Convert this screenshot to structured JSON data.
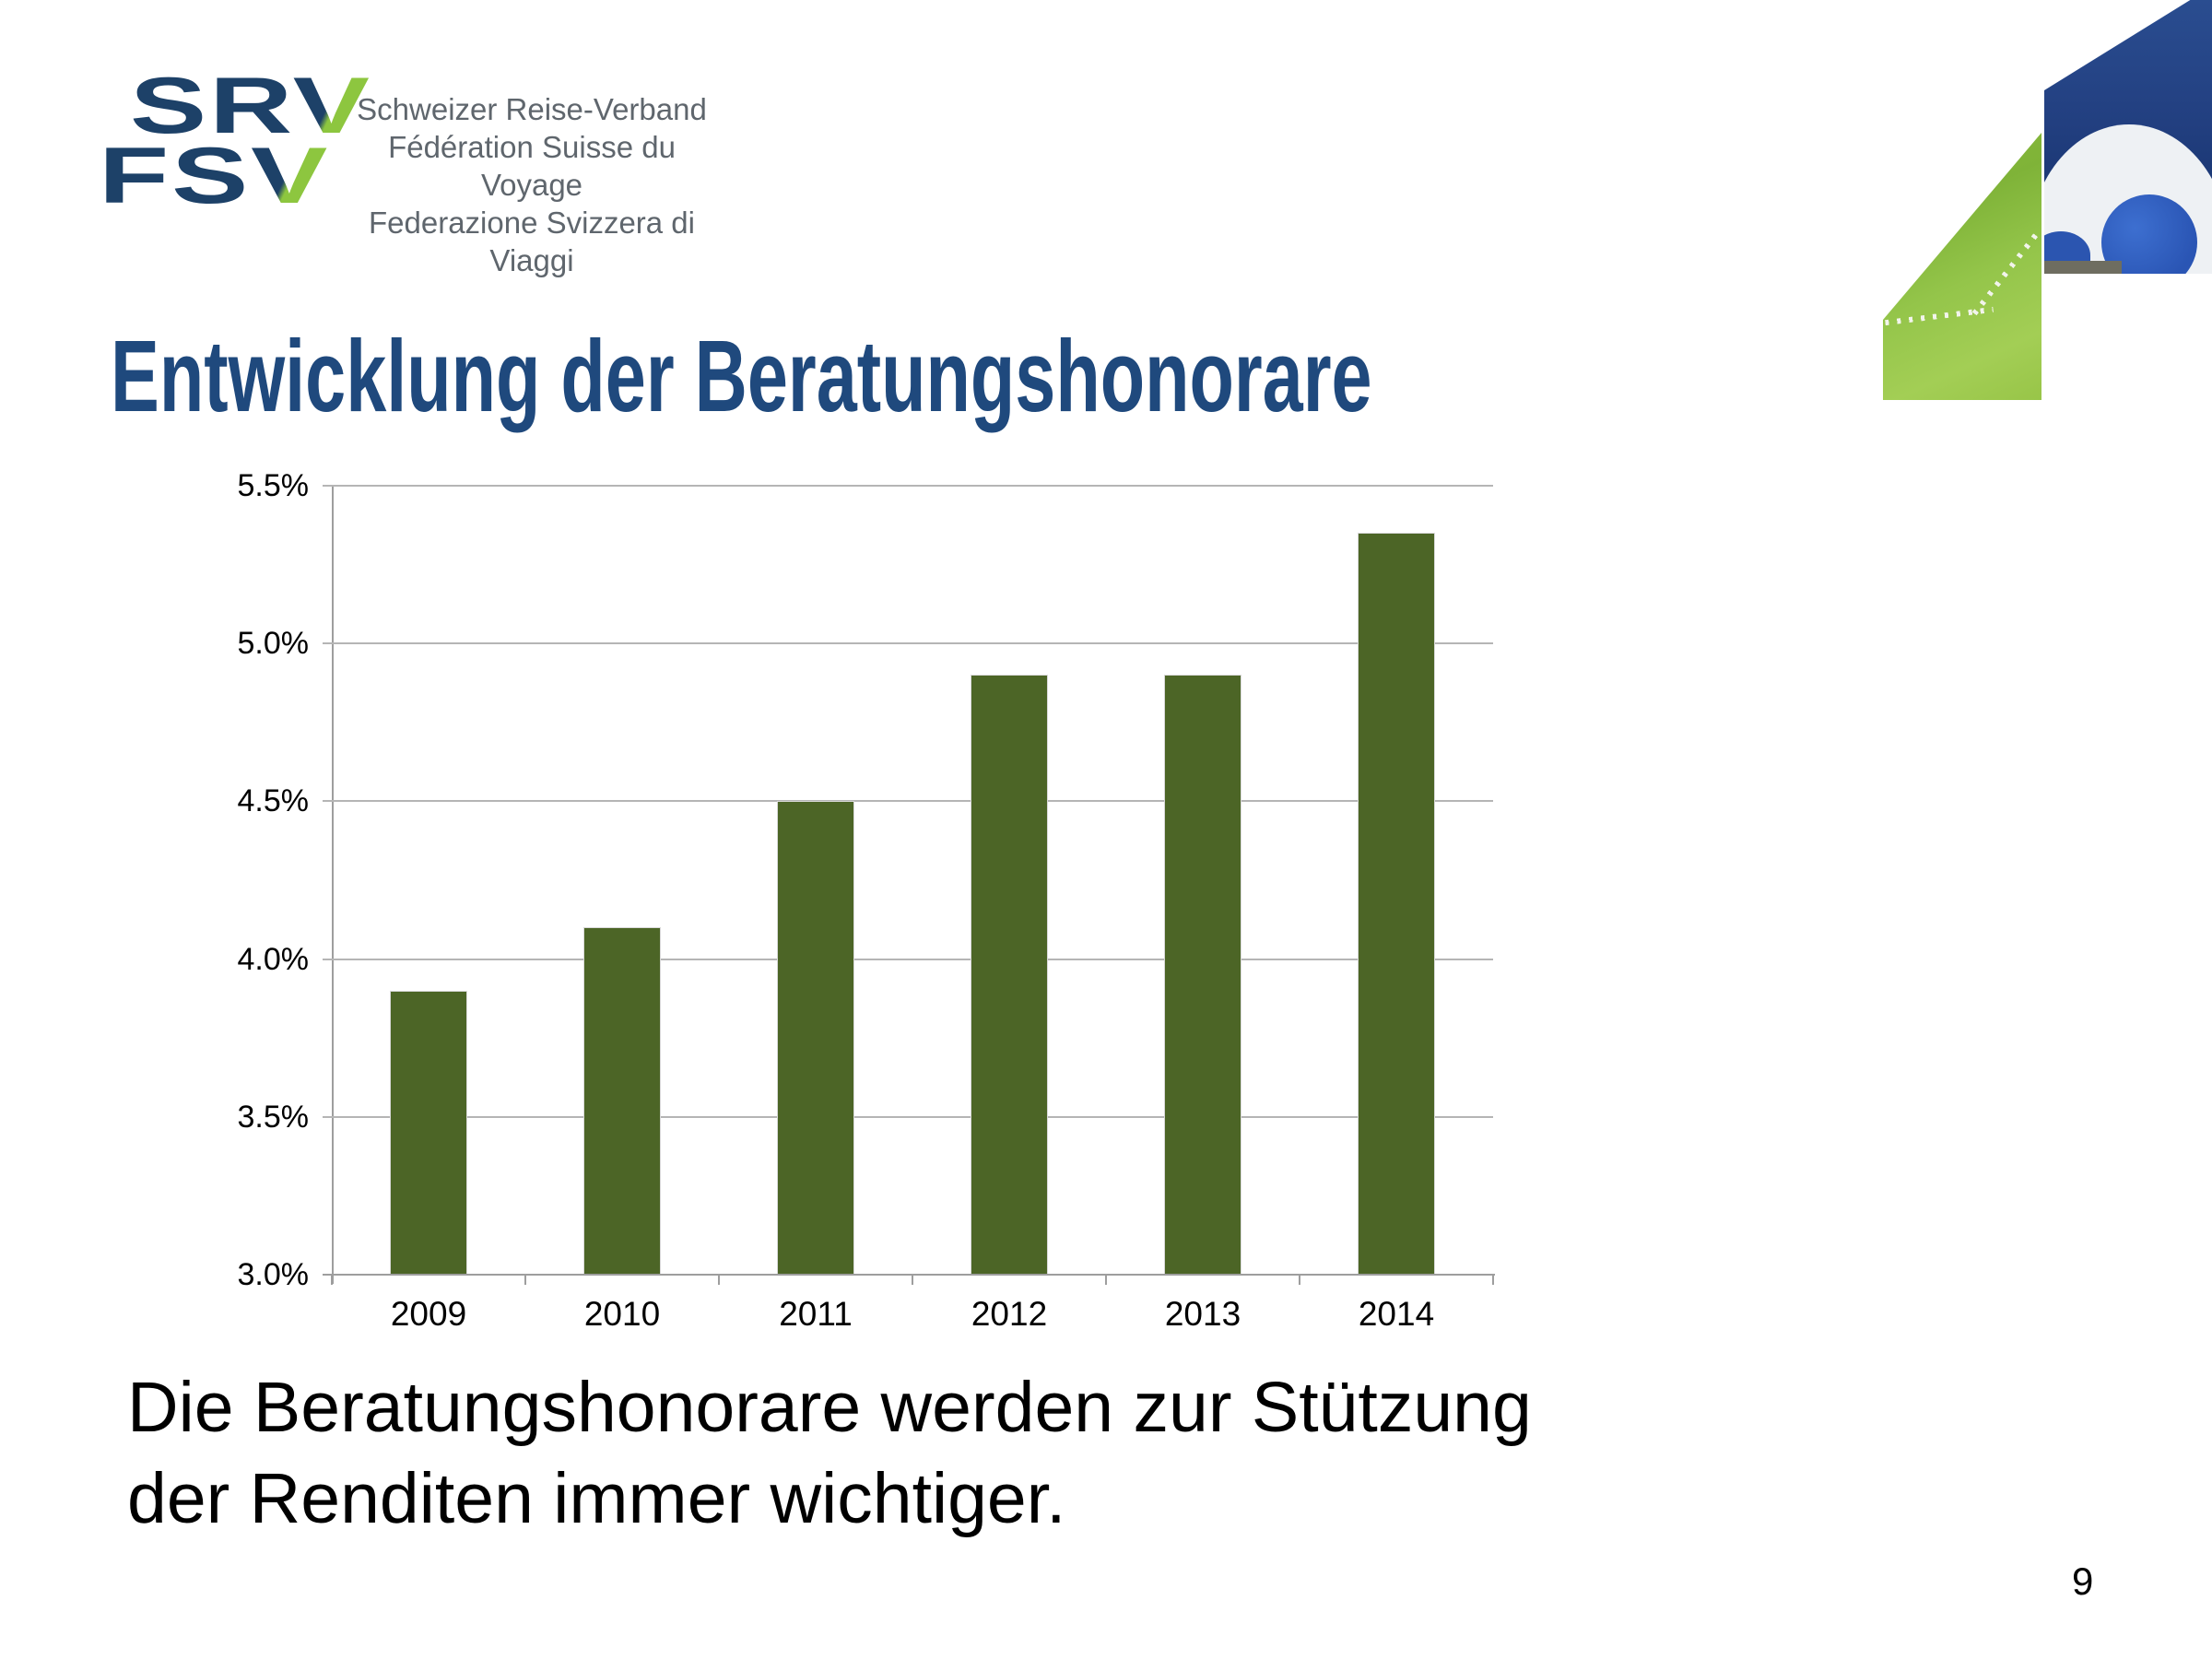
{
  "slide": {
    "title": "Entwicklung der Beratungshonorare",
    "body_lines": {
      "0": "Die Beratungshonorare werden zur Stützung",
      "1": "der Renditen immer wichtiger."
    },
    "page_number": "9",
    "colors": {
      "title_blue": "#1F497D",
      "bar_green": "#4C6526",
      "logo_navy": "#1D4168",
      "logo_green": "#8DC63F",
      "subtitle_gray": "#5F666D"
    }
  },
  "logo": {
    "line1_prefix": "SR",
    "line1_v": "V",
    "line2_prefix": "FS",
    "line2_v": "V",
    "subtitle_lines": {
      "0": "Schweizer Reise-Verband",
      "1": "Fédération Suisse du Voyage",
      "2": "Federazione Svizzera di Viaggi"
    }
  },
  "chart_data": {
    "type": "bar",
    "title": "",
    "categories": [
      "2009",
      "2010",
      "2011",
      "2012",
      "2013",
      "2014"
    ],
    "values": [
      3.9,
      4.1,
      4.5,
      4.9,
      4.9,
      5.35
    ],
    "unit": "%",
    "xlabel": "",
    "ylabel": "",
    "ylim": [
      3.0,
      5.5
    ],
    "yticks": [
      5.5,
      5.0,
      4.5,
      4.0,
      3.5,
      3.0
    ],
    "ytick_labels": [
      "5.5%",
      "5.0%",
      "4.5%",
      "4.0%",
      "3.5%",
      "3.0%"
    ],
    "grid": true,
    "legend_position": "none",
    "bar_color": "#4C6526"
  }
}
